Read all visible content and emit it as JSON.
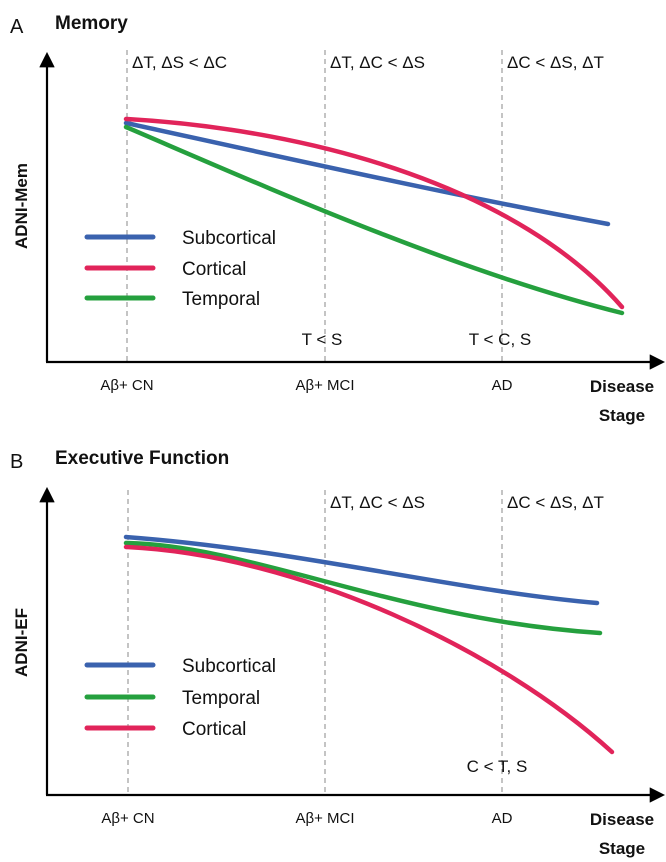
{
  "panels": [
    {
      "letter": "A",
      "title": "Memory",
      "y_label": "ADNI-Mem",
      "x_label": [
        "Disease",
        "Stage"
      ],
      "stages": [
        "Aβ+ CN",
        "Aβ+ MCI",
        "AD"
      ],
      "top_annotations": [
        "ΔT, ΔS < ΔC",
        "ΔT, ΔC < ΔS",
        "ΔC < ΔS, ΔT"
      ],
      "bottom_annotations": [
        "T < S",
        "T < C, S"
      ],
      "legend": [
        "Subcortical",
        "Cortical",
        "Temporal"
      ]
    },
    {
      "letter": "B",
      "title": "Executive Function",
      "y_label": "ADNI-EF",
      "x_label": [
        "Disease",
        "Stage"
      ],
      "stages": [
        "Aβ+ CN",
        "Aβ+ MCI",
        "AD"
      ],
      "top_annotations": [
        "ΔT, ΔC < ΔS",
        "ΔC < ΔS, ΔT"
      ],
      "bottom_annotations": [
        "C < T, S"
      ],
      "legend": [
        "Subcortical",
        "Temporal",
        "Cortical"
      ]
    }
  ]
}
